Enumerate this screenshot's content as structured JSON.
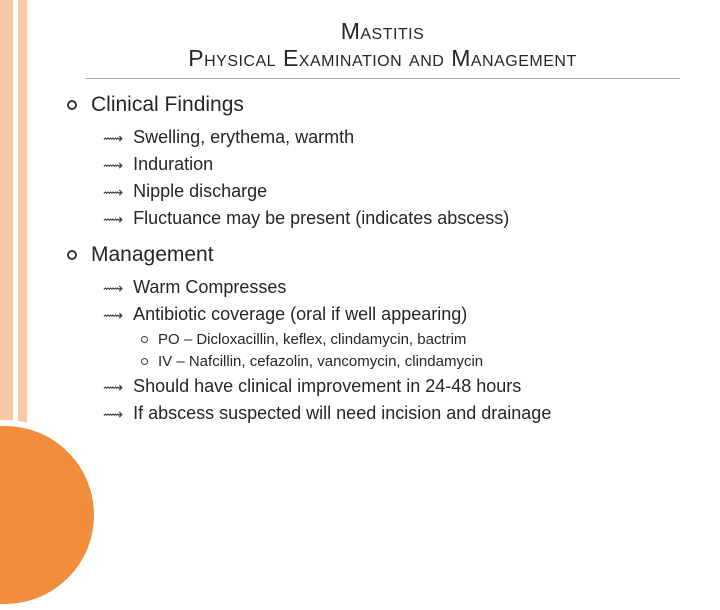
{
  "title": {
    "line1": "Mastitis",
    "line2": "Physical Examination and Management"
  },
  "sections": [
    {
      "heading": "Clinical Findings",
      "items": [
        {
          "text": "Swelling, erythema, warmth"
        },
        {
          "text": "Induration"
        },
        {
          "text": "Nipple discharge"
        },
        {
          "text": "Fluctuance may be present (indicates abscess)"
        }
      ]
    },
    {
      "heading": "Management",
      "items": [
        {
          "text": "Warm Compresses"
        },
        {
          "text": "Antibiotic coverage (oral if well appearing)",
          "subitems": [
            {
              "text": "PO – Dicloxacillin, keflex, clindamycin, bactrim"
            },
            {
              "text": "IV – Nafcillin, cefazolin, vancomycin, clindamycin"
            }
          ]
        },
        {
          "text": "Should have clinical improvement in 24-48 hours"
        },
        {
          "text": "If abscess suspected will need incision and drainage"
        }
      ]
    }
  ],
  "style": {
    "accent_light": "#f7c9a6",
    "accent_dark": "#f28d3c",
    "text_color": "#262626",
    "divider_color": "#b0b0b0",
    "title_fontsize": 23,
    "section_fontsize": 21,
    "item_fontsize": 18,
    "subitem_fontsize": 15
  }
}
